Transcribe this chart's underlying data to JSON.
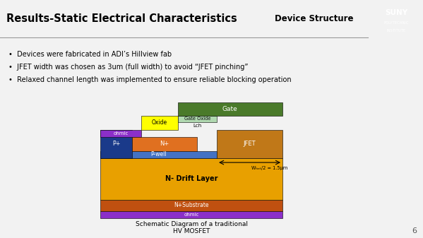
{
  "title": "Results-Static Electrical Characteristics",
  "subtitle": "Device Structure",
  "slide_bg": "#f2f2f2",
  "header_bg": "#e0e0e0",
  "bullets": [
    "Devices were fabricated in ADI’s Hillview fab",
    "JFET width was chosen as 3um (full width) to avoid “JFET pinching”",
    "Relaxed channel length was implemented to ensure reliable blocking operation"
  ],
  "footer_text": "Schematic Diagram of a traditional\nHV MOSFET",
  "page_num": "6",
  "arrow_label": "Wₕₑₜ/2 = 1.5μm",
  "colors": {
    "ohmic": "#8B2FC9",
    "p_plus": "#1a3a8a",
    "n_plus": "#e07020",
    "p_well": "#4472c4",
    "oxide": "#ffff00",
    "gate": "#4a7a2a",
    "gate_oxide": "#b0d8b0",
    "jfet": "#c07818",
    "n_drift": "#e8a000",
    "n_substrate": "#c05010",
    "suny_blue": "#1a3070"
  }
}
